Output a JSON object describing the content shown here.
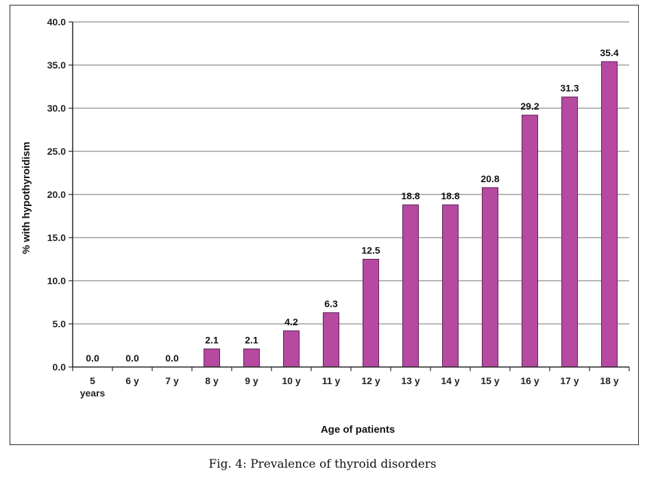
{
  "caption": "Fig. 4: Prevalence of thyroid disorders",
  "chart_data": {
    "type": "bar",
    "title": "",
    "xlabel": "Age of patients",
    "ylabel": "% with hypothyroidism",
    "ylim": [
      0,
      40
    ],
    "yticks": [
      "0.0",
      "5.0",
      "10.0",
      "15.0",
      "20.0",
      "25.0",
      "30.0",
      "35.0",
      "40.0"
    ],
    "grid": true,
    "categories": [
      "5 years",
      "6 y",
      "7 y",
      "8 y",
      "9 y",
      "10 y",
      "11 y",
      "12 y",
      "13 y",
      "14 y",
      "15 y",
      "16 y",
      "17 y",
      "18 y"
    ],
    "values": [
      0.0,
      0.0,
      0.0,
      2.1,
      2.1,
      4.2,
      6.3,
      12.5,
      18.8,
      18.8,
      20.8,
      29.2,
      31.3,
      35.4
    ],
    "value_labels": [
      "0.0",
      "0.0",
      "0.0",
      "2.1",
      "2.1",
      "4.2",
      "6.3",
      "12.5",
      "18.8",
      "18.8",
      "20.8",
      "29.2",
      "31.3",
      "35.4"
    ],
    "bar_color": "#b54aa0",
    "bar_edge_color": "#5a1f52"
  }
}
